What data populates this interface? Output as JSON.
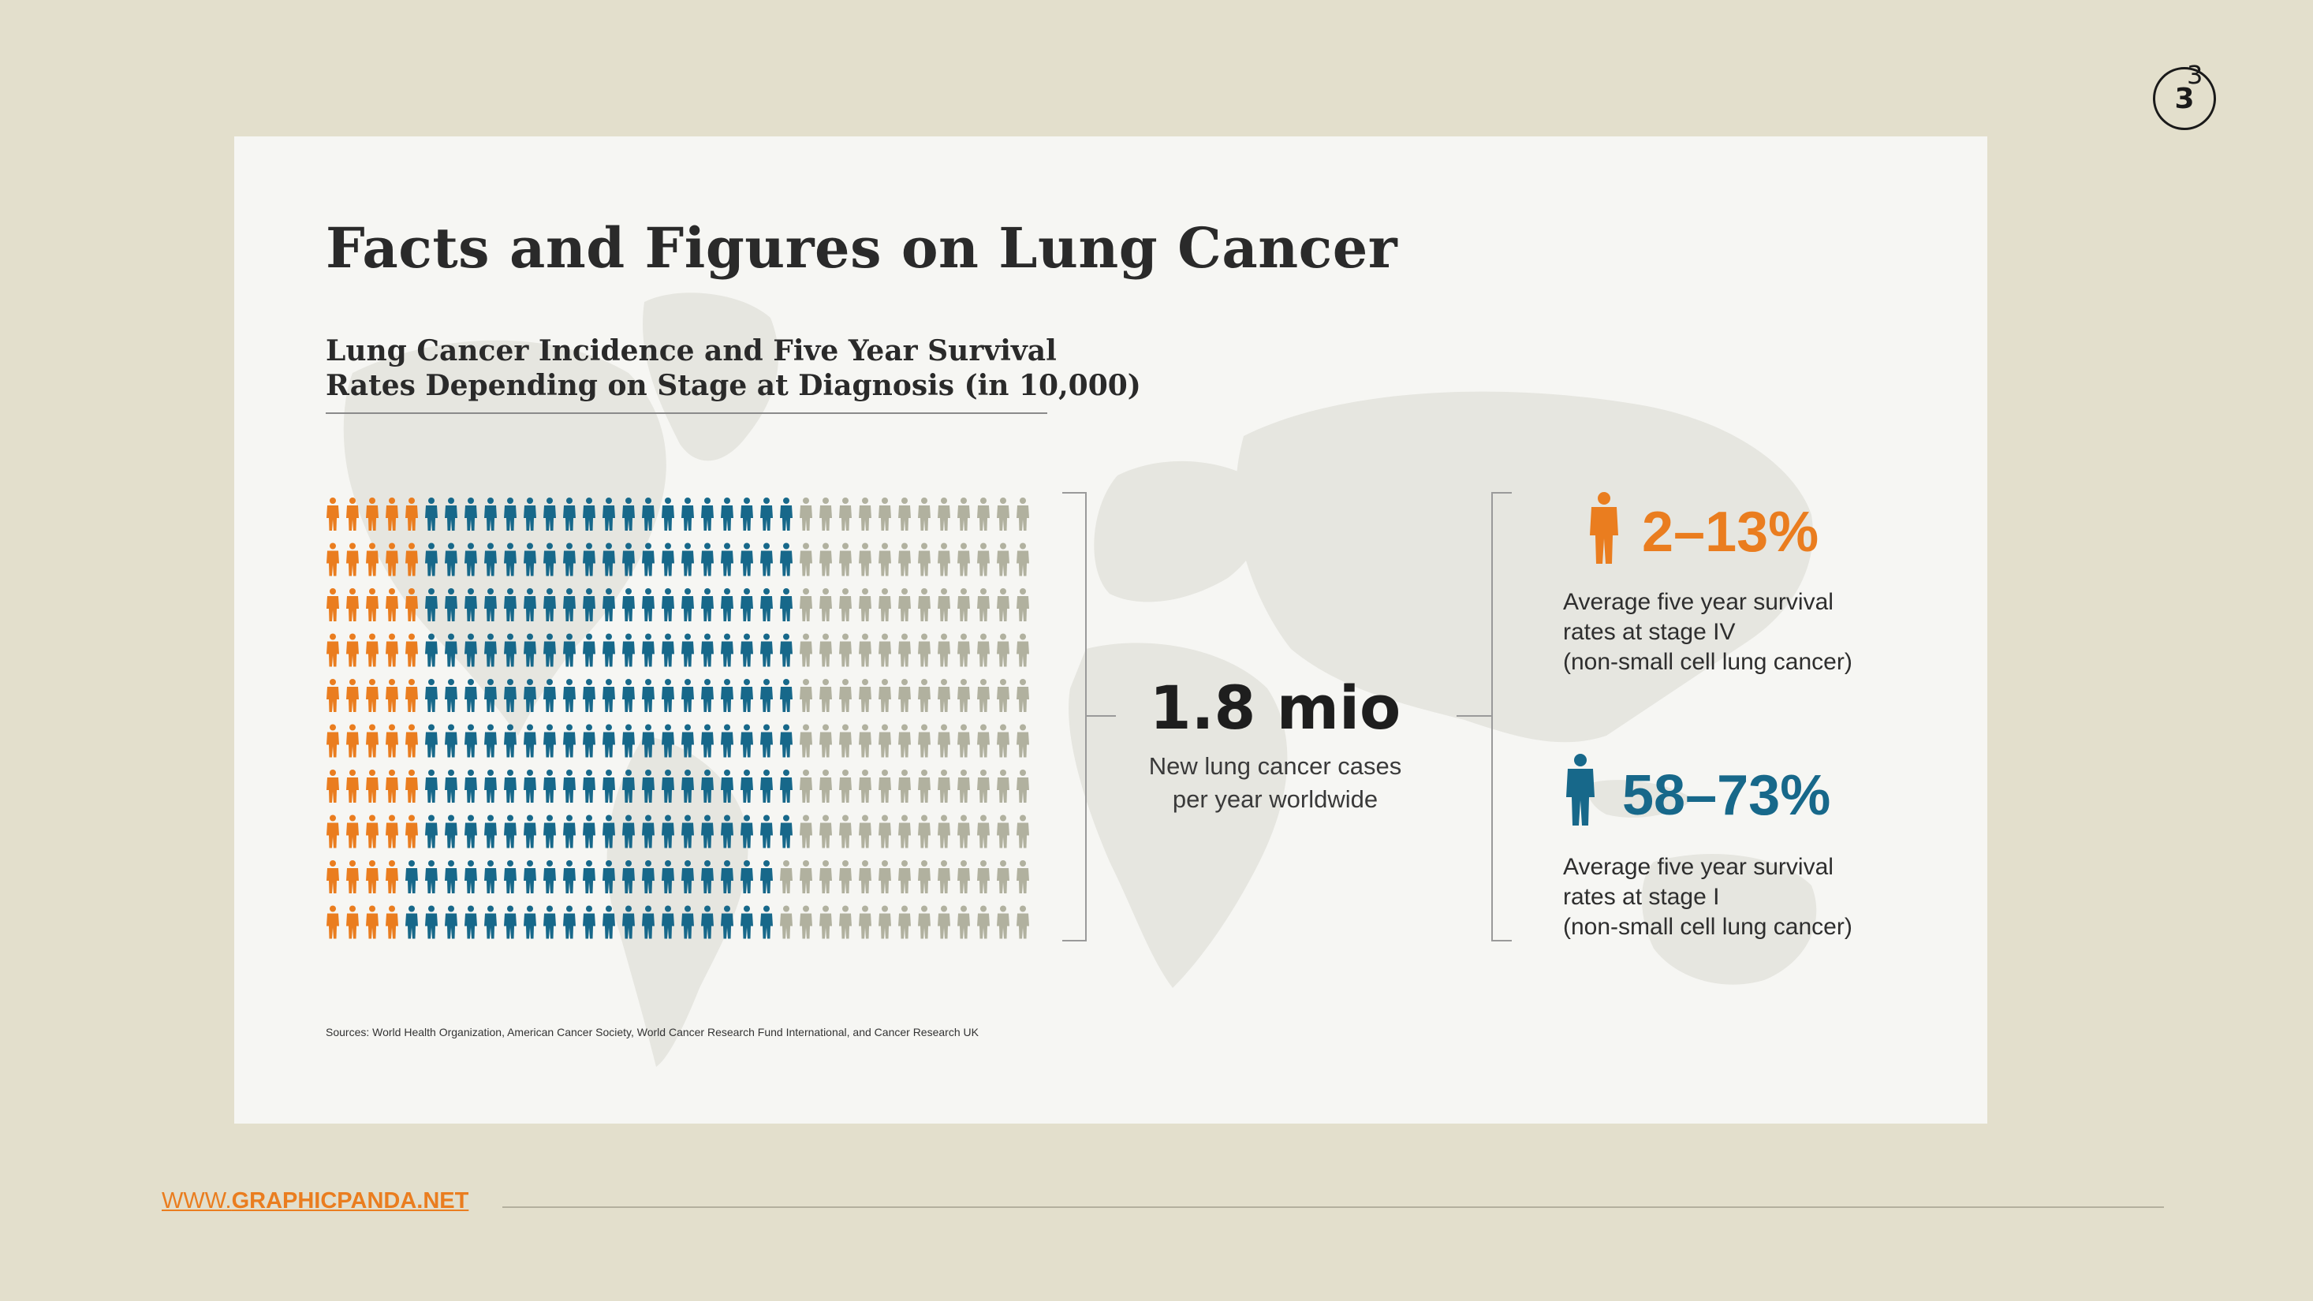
{
  "slide": {
    "number": "3"
  },
  "infographic": {
    "title": "Facts and Figures on Lung Cancer",
    "subtitle_lines": [
      "Lung Cancer Incidence and Five Year Survival",
      "Rates Depending on Stage at Diagnosis (in 10,000)"
    ],
    "pictogram": {
      "rows": 10,
      "figures_per_row": 36,
      "colors": {
        "stage_iv": "#ea7d1f",
        "stage_i": "#17688a",
        "other": "#b1b19f"
      },
      "row_counts": [
        {
          "stage_iv": 5,
          "stage_i": 19,
          "other": 12
        },
        {
          "stage_iv": 5,
          "stage_i": 19,
          "other": 12
        },
        {
          "stage_iv": 5,
          "stage_i": 19,
          "other": 12
        },
        {
          "stage_iv": 5,
          "stage_i": 19,
          "other": 12
        },
        {
          "stage_iv": 5,
          "stage_i": 19,
          "other": 12
        },
        {
          "stage_iv": 5,
          "stage_i": 19,
          "other": 12
        },
        {
          "stage_iv": 5,
          "stage_i": 19,
          "other": 12
        },
        {
          "stage_iv": 5,
          "stage_i": 19,
          "other": 12
        },
        {
          "stage_iv": 4,
          "stage_i": 19,
          "other": 13
        },
        {
          "stage_iv": 4,
          "stage_i": 19,
          "other": 13
        }
      ]
    },
    "center": {
      "value": "1.8 mio",
      "caption_lines": [
        "New lung cancer cases",
        "per year worldwide"
      ]
    },
    "stats": [
      {
        "id": "stage4",
        "percent": "2–13%",
        "color": "#ea7d1f",
        "icon": "person-icon",
        "caption_lines": [
          "Average five year survival",
          "rates at stage IV",
          "(non-small cell lung cancer)"
        ]
      },
      {
        "id": "stage1",
        "percent": "58–73%",
        "color": "#17688a",
        "icon": "person-icon",
        "caption_lines": [
          "Average five year survival",
          "rates at stage I",
          "(non-small cell lung cancer)"
        ]
      }
    ],
    "sources": "Sources: World Health Organization, American Cancer Society, World Cancer Research Fund International, and Cancer Research UK"
  },
  "footer": {
    "link_prefix": "WWW.",
    "link_domain": "GRAPHICPANDA.NET"
  }
}
